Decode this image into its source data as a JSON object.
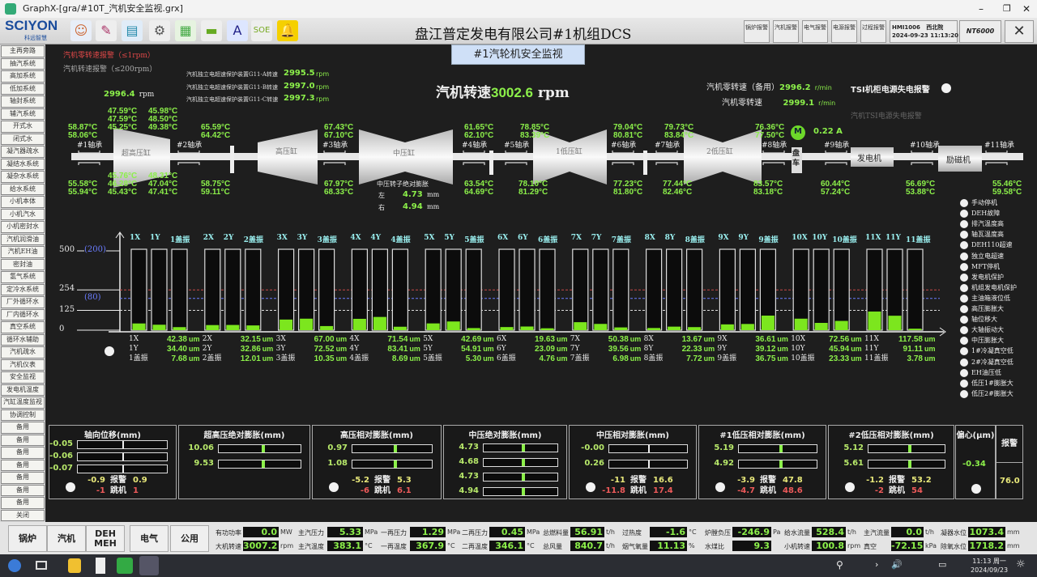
{
  "window": {
    "title": "GraphX-[gra/#10T_汽机安全监视.grx]"
  },
  "toolbar": {
    "logo": "SCIYON",
    "logo_sub": "科远智慧",
    "plant_title": "盘江普定发电有限公司#1机组DCS",
    "alarm_buttons": [
      "锅炉报警",
      "汽机报警",
      "电气报警",
      "电源报警",
      "过程报警"
    ],
    "station": "HMI1006",
    "date": "2024-09-23",
    "location": "西北院",
    "time": "11:13:20",
    "system": "NT6000"
  },
  "sidebar": {
    "items": [
      "主再旁路",
      "抽汽系统",
      "高加系统",
      "低加系统",
      "轴封系统",
      "辅汽系统",
      "开式水",
      "闭式水",
      "凝汽器疏水",
      "凝结水系统",
      "凝杂水系统",
      "给水系统",
      "小机本体",
      "小机汽水",
      "小机密封水",
      "汽机润滑油",
      "汽机EH油",
      "密封油",
      "氢气系统",
      "定冷水系统",
      "厂外循环水",
      "厂内循环水",
      "真空系统",
      "循环水辅助",
      "汽机疏水",
      "汽机仪表",
      "安全监视",
      "发电机温度",
      "汽缸温度监视",
      "协调控制",
      "备用",
      "备用",
      "备用",
      "备用",
      "备用",
      "备用",
      "备用",
      "关闭"
    ]
  },
  "page": {
    "title": "#1汽轮机安全监视",
    "zero_speed_alarm": "汽机零转速报警（≤1rpm）",
    "speed_alarm": "汽机转速报警（≤200rpm）",
    "speed_left": "2996.4",
    "rpm": "rpm",
    "ops": [
      {
        "label": "汽机独立电超速保护装置G11-A转速",
        "value": "2995.5"
      },
      {
        "label": "汽机独立电超速保护装置G11-B转速",
        "value": "2997.0"
      },
      {
        "label": "汽机独立电超速保护装置G11-C转速",
        "value": "2997.3"
      }
    ],
    "main_speed_label": "汽机转速",
    "main_speed": "3002.6",
    "zero_speed_backup_label": "汽机零转速（备用）",
    "zero_speed_backup": "2996.2",
    "zero_speed_label": "汽机零转速",
    "zero_speed": "2999.1",
    "rmin": "r/min",
    "tsi_cabinet_alarm": "TSI机柜电源失电报警",
    "tsi_power_alarm": "汽机TSI电源失电报警"
  },
  "turbine": {
    "casings": [
      "超高压缸",
      "高压缸",
      "中压缸",
      "1低压缸",
      "2低压缸"
    ],
    "turning_gear": "盘车",
    "generator": "发电机",
    "exciter": "励磁机",
    "motor": "M",
    "motor_current": "0.22 A",
    "bearings": [
      "#1轴承",
      "#2轴承",
      "#3轴承",
      "#4轴承",
      "#5轴承",
      "#6轴承",
      "#7轴承",
      "#8轴承",
      "#9轴承",
      "#10轴承",
      "#11轴承"
    ],
    "temps": [
      "58.87",
      "58.06",
      "55.58",
      "55.94",
      "47.59",
      "47.59",
      "45.25",
      "45.98",
      "48.50",
      "49.38",
      "45.76",
      "46.28",
      "45.43",
      "48.31",
      "47.04",
      "47.41",
      "65.59",
      "64.42",
      "58.75",
      "59.11",
      "67.43",
      "67.10",
      "67.97",
      "68.33",
      "61.65",
      "62.10",
      "63.54",
      "64.69",
      "78.85",
      "83.39",
      "78.10",
      "81.29",
      "79.04",
      "80.81",
      "77.23",
      "81.80",
      "79.73",
      "83.84",
      "77.44",
      "82.46",
      "76.36",
      "77.50",
      "83.57",
      "83.18",
      "60.44",
      "57.24",
      "56.69",
      "53.88",
      "55.46",
      "59.58"
    ],
    "deg": "°C",
    "ip_rotor_label": "中压转子绝对膨胀",
    "left_label": "左",
    "left": "4.73",
    "right_label": "右",
    "right": "4.94",
    "mm": "mm"
  },
  "chart_data": {
    "type": "bar",
    "ylim": [
      0,
      500
    ],
    "cap_ylim": [
      0,
      200
    ],
    "yticks": [
      "500",
      "254",
      "125",
      "0"
    ],
    "cap_ticks": [
      "(200)",
      "(80)"
    ],
    "threshold_lines": [
      {
        "value": 254,
        "color": "#d04040"
      },
      {
        "value": 80,
        "scale": "cap",
        "color": "#6a7cff"
      },
      {
        "value": 125,
        "color": "#dddddd"
      }
    ],
    "unit": "um",
    "groups": [
      {
        "x": "1X",
        "y": "1Y",
        "cap": "1盖振",
        "xv": 42.38,
        "yv": 34.4,
        "cv": 7.68
      },
      {
        "x": "2X",
        "y": "2Y",
        "cap": "2盖振",
        "xv": 32.15,
        "yv": 32.86,
        "cv": 12.01
      },
      {
        "x": "3X",
        "y": "3Y",
        "cap": "3盖振",
        "xv": 67.0,
        "yv": 72.52,
        "cv": 10.35
      },
      {
        "x": "4X",
        "y": "4Y",
        "cap": "4盖振",
        "xv": 71.54,
        "yv": 83.41,
        "cv": 8.69
      },
      {
        "x": "5X",
        "y": "5Y",
        "cap": "5盖振",
        "xv": 42.69,
        "yv": 54.91,
        "cv": 5.3
      },
      {
        "x": "6X",
        "y": "6Y",
        "cap": "6盖振",
        "xv": 19.63,
        "yv": 23.09,
        "cv": 4.76
      },
      {
        "x": "7X",
        "y": "7Y",
        "cap": "7盖振",
        "xv": 50.38,
        "yv": 39.56,
        "cv": 6.98
      },
      {
        "x": "8X",
        "y": "8Y",
        "cap": "8盖振",
        "xv": 13.67,
        "yv": 22.33,
        "cv": 7.72
      },
      {
        "x": "9X",
        "y": "9Y",
        "cap": "9盖振",
        "xv": 36.61,
        "yv": 39.12,
        "cv": 36.75
      },
      {
        "x": "10X",
        "y": "10Y",
        "cap": "10盖振",
        "xv": 72.56,
        "yv": 45.94,
        "cv": 23.33
      },
      {
        "x": "11X",
        "y": "11Y",
        "cap": "11盖振",
        "xv": 117.58,
        "yv": 91.11,
        "cv": 3.78
      }
    ]
  },
  "alarms": [
    "手动停机",
    "DEH故障",
    "排汽温度高",
    "轴瓦温度高",
    "DEH110超速",
    "独立电超速",
    "MFT停机",
    "发电机保护",
    "机组发电机保护",
    "主油箱液位低",
    "高压膨胀大",
    "轴位移大",
    "大轴振动大",
    "中压膨胀大",
    "1#冷凝真空低",
    "2#冷凝真空低",
    "EH油压低",
    "低压1#膨胀大",
    "低压2#膨胀大"
  ],
  "panels": [
    {
      "title": "轴向位移(mm)",
      "values": [
        "-0.05",
        "-0.06",
        "-0.07"
      ],
      "alarm_lo": "-0.9",
      "alarm_hi": "0.9",
      "trip_lo": "-1",
      "trip_hi": "1"
    },
    {
      "title": "超高压绝对膨胀(mm)",
      "values": [
        "10.06",
        "9.53"
      ]
    },
    {
      "title": "高压相对膨胀(mm)",
      "values": [
        "0.97",
        "1.08"
      ],
      "alarm_lo": "-5.2",
      "alarm_hi": "5.3",
      "trip_lo": "-6",
      "trip_hi": "6.1"
    },
    {
      "title": "中压绝对膨胀(mm)",
      "values": [
        "4.73",
        "4.68",
        "4.73",
        "4.94"
      ]
    },
    {
      "title": "中压相对膨胀(mm)",
      "values": [
        "-0.00",
        "0.26"
      ],
      "alarm_lo": "-11",
      "alarm_hi": "16.6",
      "trip_lo": "-11.8",
      "trip_hi": "17.4"
    },
    {
      "title": "#1低压相对膨胀(mm)",
      "values": [
        "5.19",
        "4.92"
      ],
      "alarm_lo": "-3.9",
      "alarm_hi": "47.8",
      "trip_lo": "-4.7",
      "trip_hi": "48.6"
    },
    {
      "title": "#2低压相对膨胀(mm)",
      "values": [
        "5.12",
        "5.61"
      ],
      "alarm_lo": "-1.2",
      "alarm_hi": "53.2",
      "trip_lo": "-2",
      "trip_hi": "54"
    }
  ],
  "labels": {
    "alarm": "报警",
    "trip": "跳机"
  },
  "eccentric": {
    "title": "偏心(μm)",
    "value": "-0.34",
    "alarm_label": "报警",
    "alarm_value": "76.0"
  },
  "bottom": {
    "nav": [
      "锅炉",
      "汽机",
      "DEH\nMEH",
      "电气",
      "公用"
    ],
    "readouts": [
      {
        "label": "有功功率",
        "value": "0.0",
        "unit": "MW"
      },
      {
        "label": "大机转速",
        "value": "3007.2",
        "unit": "rpm"
      },
      {
        "label": "主汽压力",
        "value": "5.33",
        "unit": "MPa"
      },
      {
        "label": "主汽温度",
        "value": "383.1",
        "unit": "°C"
      },
      {
        "label": "一再压力",
        "value": "1.29",
        "unit": "MPa"
      },
      {
        "label": "一再温度",
        "value": "367.9",
        "unit": "°C"
      },
      {
        "label": "二再压力",
        "value": "0.45",
        "unit": "MPa"
      },
      {
        "label": "二再温度",
        "value": "346.1",
        "unit": "°C"
      },
      {
        "label": "总燃料量",
        "value": "56.91",
        "unit": "t/h"
      },
      {
        "label": "总风量",
        "value": "840.7",
        "unit": "t/h"
      },
      {
        "label": "过热度",
        "value": "-1.6",
        "unit": "°C"
      },
      {
        "label": "烟气氧量",
        "value": "11.13",
        "unit": "%"
      },
      {
        "label": "炉膛负压",
        "value": "-246.9",
        "unit": "Pa"
      },
      {
        "label": "水煤比",
        "value": "9.3",
        "unit": ""
      },
      {
        "label": "给水流量",
        "value": "528.4",
        "unit": "t/h"
      },
      {
        "label": "小机转速",
        "value": "100.8",
        "unit": "rpm"
      },
      {
        "label": "主汽流量",
        "value": "0.0",
        "unit": "t/h"
      },
      {
        "label": "真空",
        "value": "-72.15",
        "unit": "kPa"
      },
      {
        "label": "凝器水位",
        "value": "1073.4",
        "unit": "mm"
      },
      {
        "label": "除氧水位",
        "value": "1718.2",
        "unit": "mm"
      }
    ]
  },
  "taskbar": {
    "time": "11:13 周一",
    "date": "2024/09/23"
  }
}
